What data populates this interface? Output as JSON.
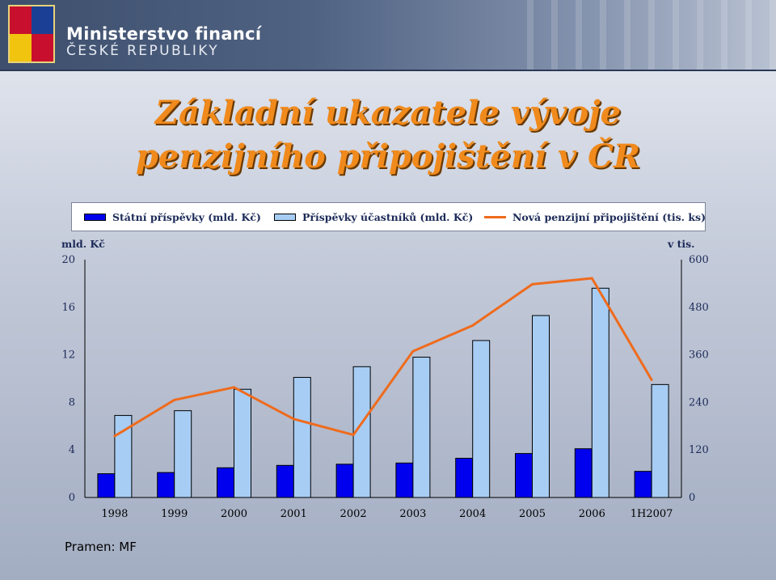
{
  "header": {
    "ministry_name": "Ministerstvo financí",
    "ministry_subtitle": "ČESKÉ REPUBLIKY",
    "logo_icon": "czech-coat-of-arms-icon"
  },
  "title_line1": "Základní ukazatele vývoje",
  "title_line2": "penzijního připojištění v ČR",
  "source": "Pramen: MF",
  "colors": {
    "bar_state": "#0000ee",
    "bar_participants": "#a7cdf4",
    "line_contracts": "#ef6b1d",
    "title": "#f08a1c"
  },
  "chart_data": {
    "type": "bar",
    "categories": [
      "1998",
      "1999",
      "2000",
      "2001",
      "2002",
      "2003",
      "2004",
      "2005",
      "2006",
      "1H2007"
    ],
    "series": [
      {
        "name": "Státní příspěvky (mld. Kč)",
        "type": "bar",
        "axis": "left",
        "values": [
          2.0,
          2.1,
          2.5,
          2.7,
          2.8,
          2.9,
          3.3,
          3.7,
          4.1,
          2.2
        ]
      },
      {
        "name": "Příspěvky účastníků (mld. Kč)",
        "type": "bar",
        "axis": "left",
        "values": [
          6.9,
          7.3,
          9.1,
          10.1,
          11.0,
          11.8,
          13.2,
          15.3,
          17.6,
          9.5
        ]
      },
      {
        "name": "Nová penzijní připojištění (tis. ks)",
        "type": "line",
        "axis": "right",
        "values": [
          155,
          246,
          278,
          198,
          158,
          369,
          434,
          538,
          553,
          297
        ]
      }
    ],
    "ylabel_left": "mld. Kč",
    "ylabel_right": "v tis.",
    "ylim_left": [
      0,
      20
    ],
    "ylim_right": [
      0,
      600
    ],
    "yticks_left": [
      "0",
      "4",
      "8",
      "12",
      "16",
      "20"
    ],
    "yticks_right": [
      "0",
      "120",
      "240",
      "360",
      "480",
      "600"
    ],
    "legend_position": "top",
    "grid": false
  }
}
